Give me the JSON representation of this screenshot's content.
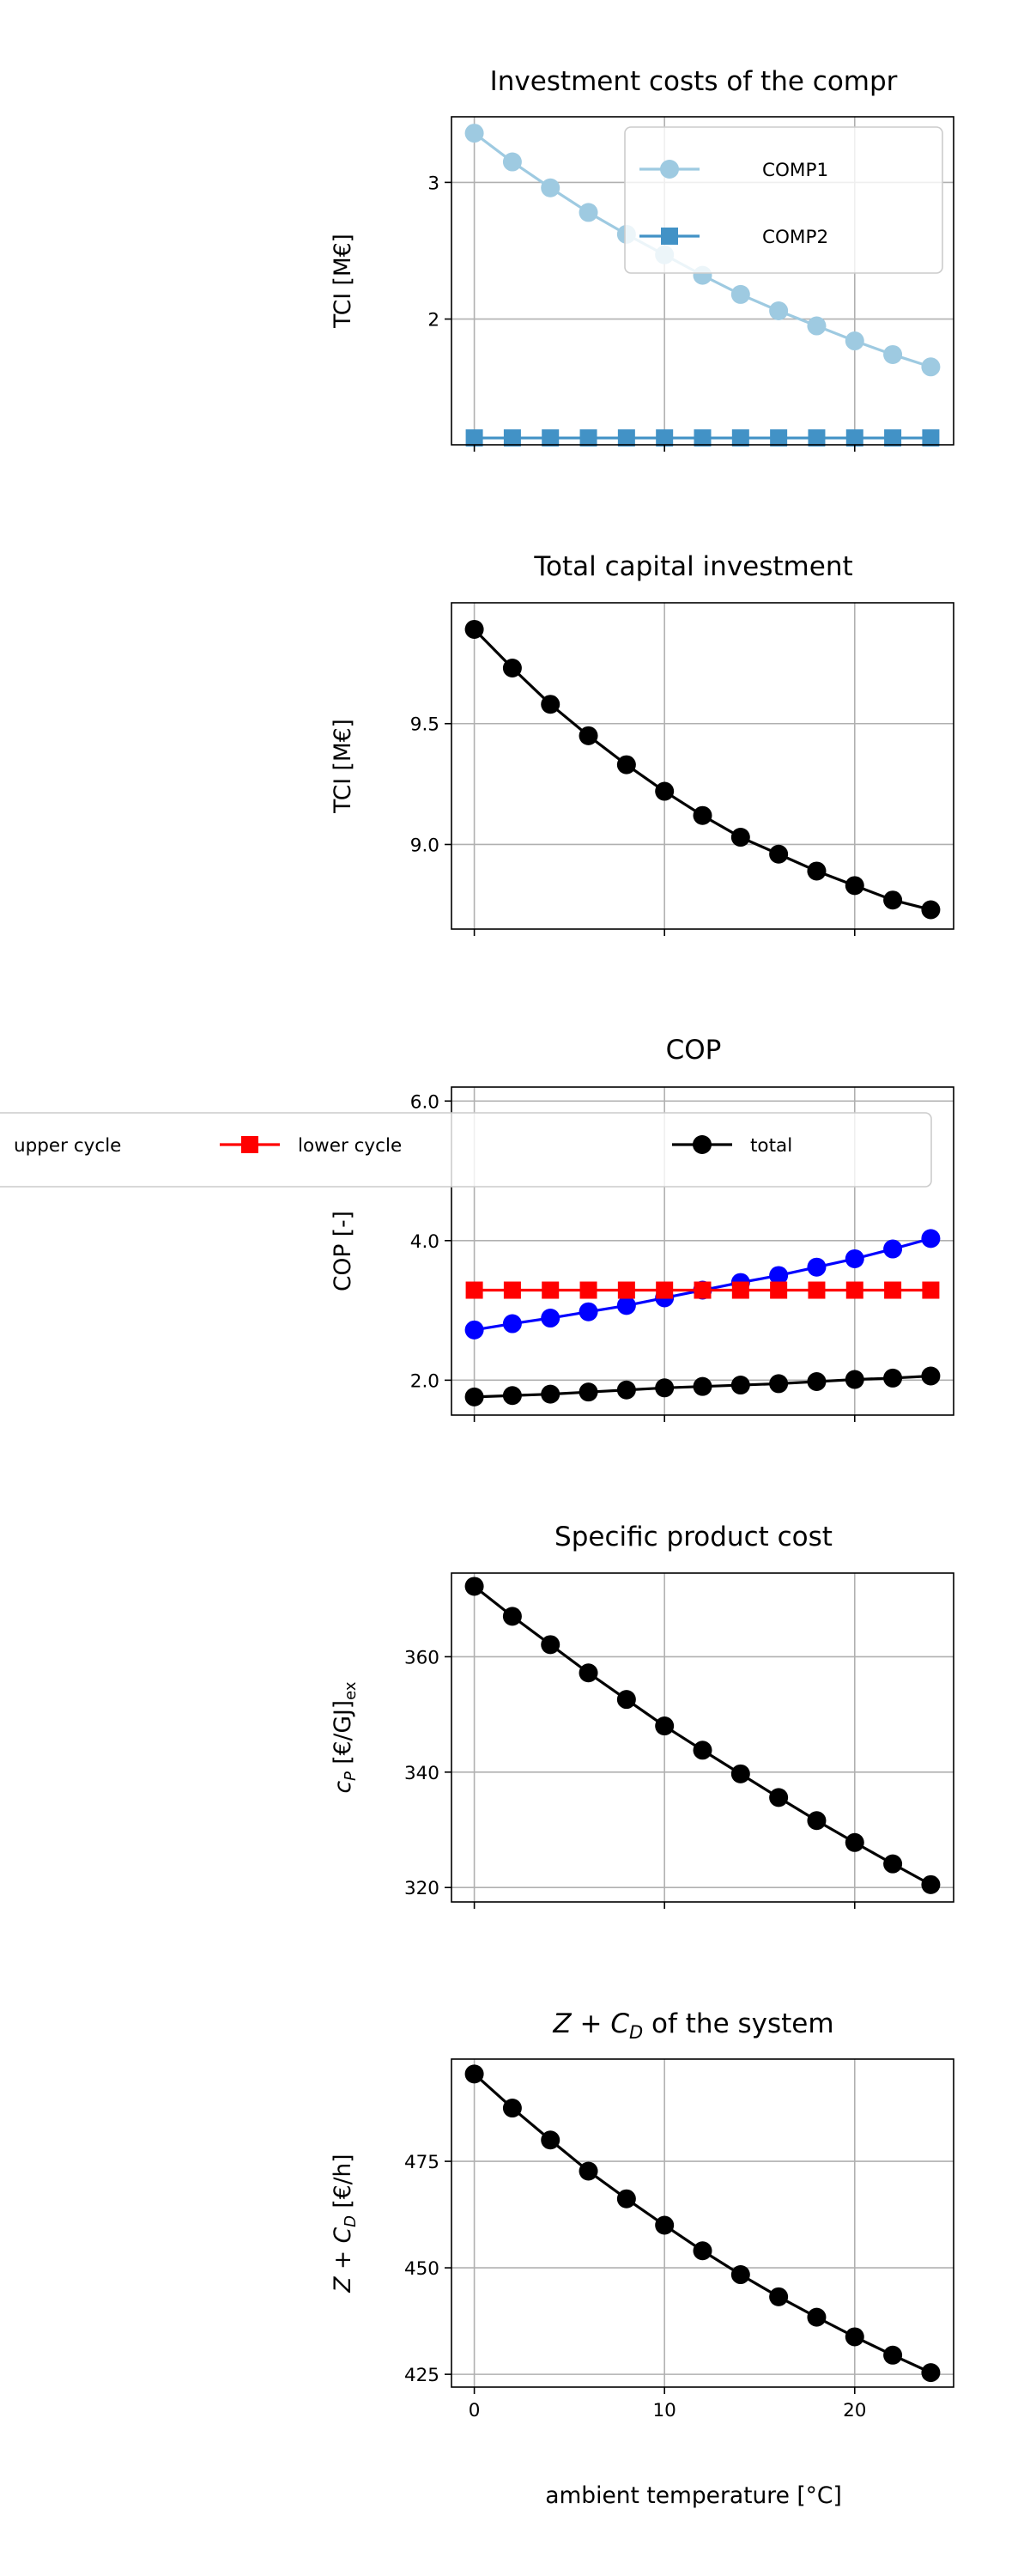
{
  "chart_data": [
    {
      "type": "line",
      "title": "Investment costs of the compr",
      "ylabel": "TCI [M€]",
      "xlim": [
        -1.2,
        25.2
      ],
      "ylim": [
        1.08,
        3.48
      ],
      "xticks": [
        0,
        10,
        20
      ],
      "yticks": [
        2,
        3
      ],
      "ytick_labels": [
        "2",
        "3"
      ],
      "show_xtick_labels": false,
      "grid": true,
      "legend": "upper right",
      "x": [
        0,
        2,
        4,
        6,
        8,
        10,
        12,
        14,
        16,
        18,
        20,
        22,
        24
      ],
      "series": [
        {
          "name": "COMP1",
          "color": "#9ecae1",
          "marker": "circle",
          "values": [
            3.36,
            3.15,
            2.96,
            2.78,
            2.62,
            2.47,
            2.32,
            2.18,
            2.06,
            1.95,
            1.84,
            1.74,
            1.65
          ]
        },
        {
          "name": "COMP2",
          "color": "#4292c6",
          "marker": "square",
          "values": [
            1.13,
            1.13,
            1.13,
            1.13,
            1.13,
            1.13,
            1.13,
            1.13,
            1.13,
            1.13,
            1.13,
            1.13,
            1.13
          ]
        }
      ]
    },
    {
      "type": "line",
      "title": "Total capital investment",
      "ylabel": "TCI [M€]",
      "xlim": [
        -1.2,
        25.2
      ],
      "ylim": [
        8.65,
        10.0
      ],
      "xticks": [
        0,
        10,
        20
      ],
      "yticks": [
        9.0,
        9.5
      ],
      "ytick_labels": [
        "9.0",
        "9.5"
      ],
      "show_xtick_labels": false,
      "grid": true,
      "x": [
        0,
        2,
        4,
        6,
        8,
        10,
        12,
        14,
        16,
        18,
        20,
        22,
        24
      ],
      "series": [
        {
          "color": "#000000",
          "marker": "circle",
          "values": [
            9.89,
            9.73,
            9.58,
            9.45,
            9.33,
            9.22,
            9.12,
            9.03,
            8.96,
            8.89,
            8.83,
            8.77,
            8.73
          ]
        }
      ]
    },
    {
      "type": "line",
      "title": "COP",
      "ylabel": "COP [-]",
      "xlim": [
        -1.2,
        25.2
      ],
      "ylim": [
        1.5,
        6.2
      ],
      "xticks": [
        0,
        10,
        20
      ],
      "yticks": [
        2.0,
        4.0,
        6.0
      ],
      "ytick_labels": [
        "2.0",
        "4.0",
        "6.0"
      ],
      "show_xtick_labels": false,
      "grid": true,
      "legend": "upper center, one row",
      "x": [
        0,
        2,
        4,
        6,
        8,
        10,
        12,
        14,
        16,
        18,
        20,
        22,
        24
      ],
      "series": [
        {
          "name": "upper cycle",
          "color": "#0000ff",
          "marker": "circle",
          "values": [
            2.72,
            2.81,
            2.89,
            2.98,
            3.07,
            3.18,
            3.29,
            3.4,
            3.5,
            3.62,
            3.74,
            3.88,
            4.03
          ]
        },
        {
          "name": "lower cycle",
          "color": "#ff0000",
          "marker": "square",
          "values": [
            3.29,
            3.29,
            3.29,
            3.29,
            3.29,
            3.29,
            3.29,
            3.29,
            3.29,
            3.29,
            3.29,
            3.29,
            3.29
          ]
        },
        {
          "name": "total",
          "color": "#000000",
          "marker": "circle",
          "values": [
            1.76,
            1.78,
            1.8,
            1.83,
            1.86,
            1.89,
            1.91,
            1.93,
            1.95,
            1.98,
            2.01,
            2.03,
            2.06
          ]
        }
      ]
    },
    {
      "type": "line",
      "title": "Specific product cost",
      "ylabel_parts": [
        "c",
        "P",
        " [€/GJ]",
        "ex"
      ],
      "xlim": [
        -1.2,
        25.2
      ],
      "ylim": [
        317.5,
        374.5
      ],
      "xticks": [
        0,
        10,
        20
      ],
      "yticks": [
        320,
        340,
        360
      ],
      "ytick_labels": [
        "320",
        "340",
        "360"
      ],
      "show_xtick_labels": false,
      "grid": true,
      "x": [
        0,
        2,
        4,
        6,
        8,
        10,
        12,
        14,
        16,
        18,
        20,
        22,
        24
      ],
      "series": [
        {
          "color": "#000000",
          "marker": "circle",
          "values": [
            372.2,
            367.0,
            362.1,
            357.2,
            352.6,
            348.0,
            343.8,
            339.7,
            335.6,
            331.6,
            327.8,
            324.1,
            320.5
          ]
        }
      ]
    },
    {
      "type": "line",
      "title_parts": [
        "Z",
        " + ",
        "C",
        "D",
        " of the system"
      ],
      "ylabel_parts": [
        "Z",
        " + ",
        "C",
        "D",
        " [€/h]"
      ],
      "xlim": [
        -1.2,
        25.2
      ],
      "ylim": [
        422.0,
        499.0
      ],
      "xticks": [
        0,
        10,
        20
      ],
      "xtick_labels": [
        "0",
        "10",
        "20"
      ],
      "yticks": [
        425,
        450,
        475
      ],
      "ytick_labels": [
        "425",
        "450",
        "475"
      ],
      "xlabel": "ambient temperature [°C]",
      "grid": true,
      "x": [
        0,
        2,
        4,
        6,
        8,
        10,
        12,
        14,
        16,
        18,
        20,
        22,
        24
      ],
      "series": [
        {
          "color": "#000000",
          "marker": "circle",
          "values": [
            495.5,
            487.5,
            480.0,
            472.7,
            466.2,
            460.0,
            454.0,
            448.4,
            443.2,
            438.4,
            433.8,
            429.5,
            425.4
          ]
        }
      ]
    }
  ]
}
